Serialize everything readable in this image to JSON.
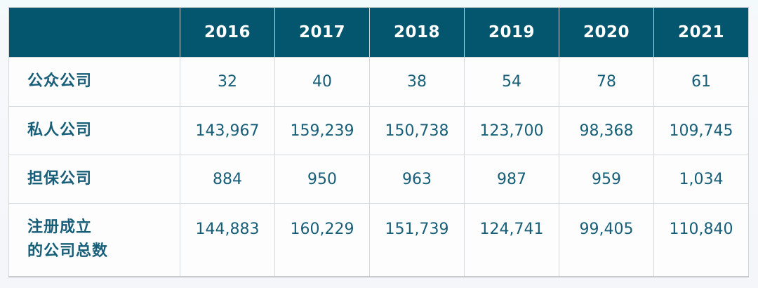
{
  "colors": {
    "header_bg": "#04566e",
    "header_text": "#ffffff",
    "body_text": "#175e78",
    "grid_border": "#d6d9db",
    "page_bg": "#f5f8fa"
  },
  "table": {
    "columns": [
      "",
      "2016",
      "2017",
      "2018",
      "2019",
      "2020",
      "2021"
    ],
    "rows": [
      {
        "label": "公众公司",
        "label2": "",
        "values": [
          "32",
          "40",
          "38",
          "54",
          "78",
          "61"
        ]
      },
      {
        "label": "私人公司",
        "label2": "",
        "values": [
          "143,967",
          "159,239",
          "150,738",
          "123,700",
          "98,368",
          "109,745"
        ]
      },
      {
        "label": "担保公司",
        "label2": "",
        "values": [
          "884",
          "950",
          "963",
          "987",
          "959",
          "1,034"
        ]
      },
      {
        "label": "注册成立",
        "label2": "的公司总数",
        "values": [
          "144,883",
          "160,229",
          "151,739",
          "124,741",
          "99,405",
          "110,840"
        ]
      }
    ]
  },
  "chart_data": {
    "type": "table",
    "title": "",
    "categories": [
      "2016",
      "2017",
      "2018",
      "2019",
      "2020",
      "2021"
    ],
    "series": [
      {
        "name": "公众公司",
        "values": [
          32,
          40,
          38,
          54,
          78,
          61
        ]
      },
      {
        "name": "私人公司",
        "values": [
          143967,
          159239,
          150738,
          123700,
          98368,
          109745
        ]
      },
      {
        "name": "担保公司",
        "values": [
          884,
          950,
          963,
          987,
          959,
          1034
        ]
      },
      {
        "name": "注册成立的公司总数",
        "values": [
          144883,
          160229,
          151739,
          124741,
          99405,
          110840
        ]
      }
    ]
  }
}
